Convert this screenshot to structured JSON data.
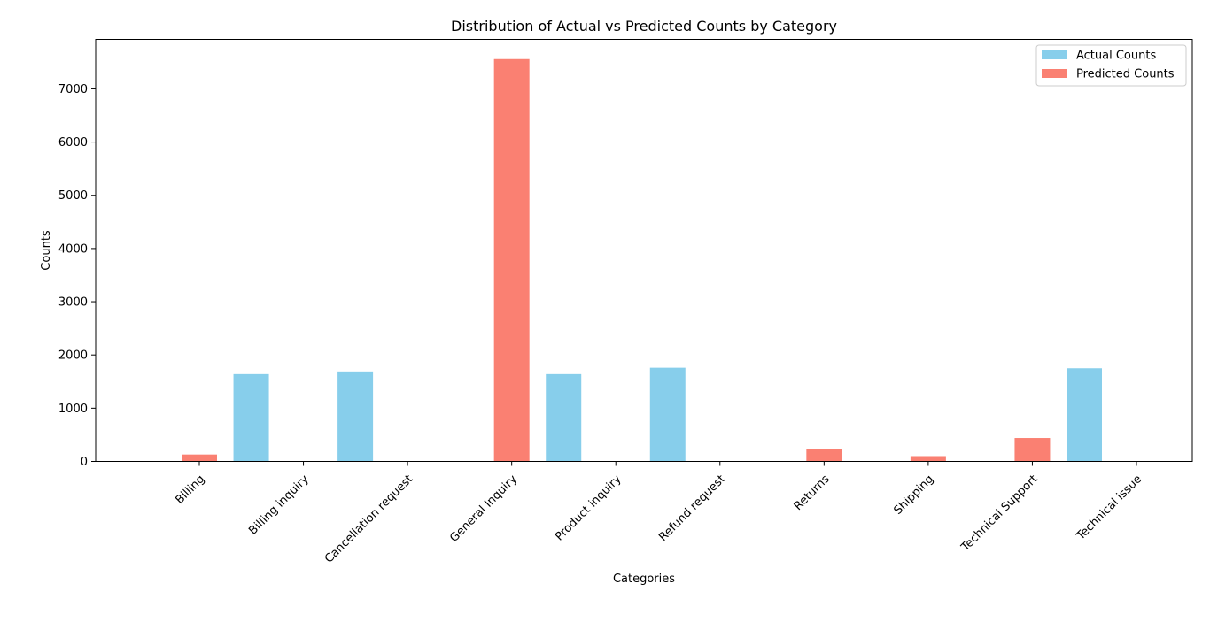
{
  "chart_data": {
    "type": "bar",
    "title": "Distribution of Actual vs Predicted Counts by Category",
    "xlabel": "Categories",
    "ylabel": "Counts",
    "ylim": [
      0,
      7930
    ],
    "yticks": [
      0,
      1000,
      2000,
      3000,
      4000,
      5000,
      6000,
      7000
    ],
    "categories": [
      "Billing",
      "Billing inquiry",
      "Cancellation request",
      "General Inquiry",
      "Product inquiry",
      "Refund request",
      "Returns",
      "Shipping",
      "Technical Support",
      "Technical issue"
    ],
    "series": [
      {
        "name": "Actual Counts",
        "color": "#87ceeb",
        "values": [
          0,
          1640,
          1690,
          0,
          1640,
          1760,
          0,
          0,
          0,
          1750
        ]
      },
      {
        "name": "Predicted Counts",
        "color": "#fa8072",
        "values": [
          130,
          0,
          0,
          7560,
          0,
          0,
          240,
          100,
          440,
          0
        ]
      }
    ],
    "legend": "top-right",
    "grid": false
  }
}
